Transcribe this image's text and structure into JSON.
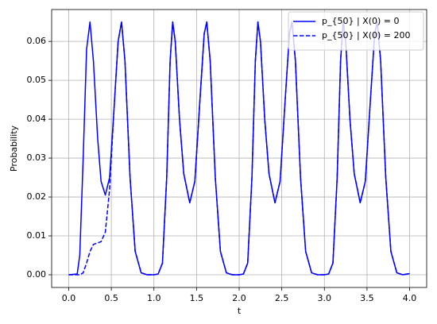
{
  "chart_data": {
    "type": "line",
    "x_label": "t",
    "y_label": "Probability",
    "x": [
      0,
      0.1,
      0.13,
      0.17,
      0.21,
      0.25,
      0.29,
      0.34,
      0.38,
      0.43,
      0.48,
      0.53,
      0.58,
      0.62,
      0.66,
      0.72,
      0.78,
      0.85,
      0.92,
      1.0,
      1.05,
      1.1,
      1.15,
      1.19,
      1.22,
      1.25,
      1.3,
      1.35,
      1.42,
      1.48,
      1.54,
      1.59,
      1.62,
      1.66,
      1.72,
      1.78,
      1.85,
      1.92,
      2.0,
      2.05,
      2.1,
      2.15,
      2.19,
      2.22,
      2.25,
      2.3,
      2.35,
      2.42,
      2.48,
      2.54,
      2.59,
      2.62,
      2.66,
      2.72,
      2.78,
      2.85,
      2.92,
      3.0,
      3.05,
      3.1,
      3.15,
      3.19,
      3.22,
      3.25,
      3.3,
      3.35,
      3.42,
      3.48,
      3.54,
      3.59,
      3.62,
      3.66,
      3.72,
      3.78,
      3.85,
      3.92,
      4.0
    ],
    "series": [
      {
        "name": "p_{50} | X(0) = 0",
        "color": "#0000ff",
        "linestyle": "solid",
        "values": [
          0,
          0.0002,
          0.005,
          0.03,
          0.058,
          0.065,
          0.055,
          0.035,
          0.024,
          0.0205,
          0.025,
          0.042,
          0.06,
          0.065,
          0.055,
          0.025,
          0.006,
          0.0005,
          0,
          0,
          0.0002,
          0.003,
          0.025,
          0.055,
          0.065,
          0.06,
          0.04,
          0.026,
          0.0185,
          0.024,
          0.045,
          0.062,
          0.065,
          0.055,
          0.025,
          0.006,
          0.0005,
          0,
          0,
          0.0002,
          0.003,
          0.025,
          0.055,
          0.065,
          0.06,
          0.04,
          0.026,
          0.0185,
          0.024,
          0.045,
          0.062,
          0.065,
          0.055,
          0.025,
          0.006,
          0.0005,
          0,
          0,
          0.0002,
          0.003,
          0.025,
          0.055,
          0.065,
          0.06,
          0.04,
          0.026,
          0.0185,
          0.024,
          0.045,
          0.062,
          0.065,
          0.055,
          0.025,
          0.006,
          0.0005,
          0,
          0.0003
        ]
      },
      {
        "name": "p_{50} | X(0) = 200",
        "color": "#0000ff",
        "linestyle": "dashed",
        "values": [
          0,
          0,
          0,
          0.0005,
          0.003,
          0.006,
          0.0078,
          0.0082,
          0.0085,
          0.011,
          0.022,
          0.042,
          0.06,
          0.065,
          0.055,
          0.025,
          0.006,
          0.0005,
          0,
          0,
          0.0002,
          0.003,
          0.025,
          0.055,
          0.065,
          0.06,
          0.04,
          0.026,
          0.0185,
          0.024,
          0.045,
          0.062,
          0.065,
          0.055,
          0.025,
          0.006,
          0.0005,
          0,
          0,
          0.0002,
          0.003,
          0.025,
          0.055,
          0.065,
          0.06,
          0.04,
          0.026,
          0.0185,
          0.024,
          0.045,
          0.062,
          0.065,
          0.055,
          0.025,
          0.006,
          0.0005,
          0,
          0,
          0.0002,
          0.003,
          0.025,
          0.055,
          0.065,
          0.06,
          0.04,
          0.026,
          0.0185,
          0.024,
          0.045,
          0.062,
          0.065,
          0.055,
          0.025,
          0.006,
          0.0005,
          0,
          0.0003
        ]
      }
    ],
    "xlim": [
      -0.2,
      4.2
    ],
    "xticks": [
      {
        "value": 0,
        "label": "0.0"
      },
      {
        "value": 0.5,
        "label": "0.5"
      },
      {
        "value": 1,
        "label": "1.0"
      },
      {
        "value": 1.5,
        "label": "1.5"
      },
      {
        "value": 2,
        "label": "2.0"
      },
      {
        "value": 2.5,
        "label": "2.5"
      },
      {
        "value": 3,
        "label": "3.0"
      },
      {
        "value": 3.5,
        "label": "3.5"
      },
      {
        "value": 4,
        "label": "4.0"
      }
    ],
    "ylim": [
      -0.00327,
      0.0682
    ],
    "yticks": [
      {
        "value": 0,
        "label": "0.00"
      },
      {
        "value": 0.01,
        "label": "0.01"
      },
      {
        "value": 0.02,
        "label": "0.02"
      },
      {
        "value": 0.03,
        "label": "0.03"
      },
      {
        "value": 0.04,
        "label": "0.04"
      },
      {
        "value": 0.05,
        "label": "0.05"
      },
      {
        "value": 0.06,
        "label": "0.06"
      }
    ],
    "grid": true,
    "legend": "upper right"
  }
}
